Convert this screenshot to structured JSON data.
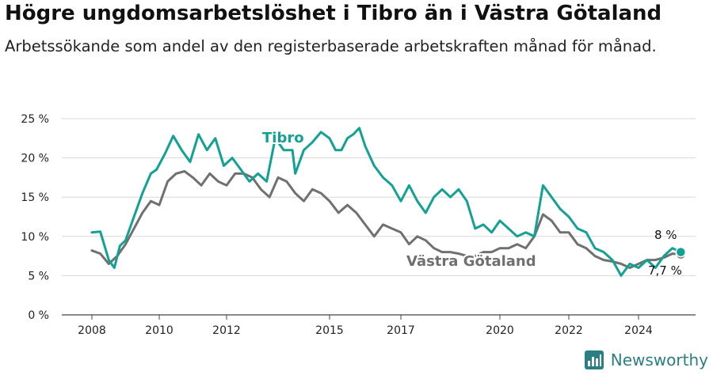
{
  "title": "Högre ungdomsarbetslöshet i Tibro än i Västra Götaland",
  "subtitle": "Arbetssökande som andel av den registerbaserade arbetskraften månad för månad.",
  "brand": "Newsworthy",
  "colors": {
    "tibro": "#12a193",
    "vg": "#707070",
    "grid": "#d8d8d8",
    "brand": "#2a7f83"
  },
  "chart_data": {
    "type": "line",
    "x_ticks": [
      "2008",
      "2010",
      "2012",
      "2015",
      "2017",
      "2020",
      "2022",
      "2024"
    ],
    "y_ticks": [
      "0 %",
      "5 %",
      "10 %",
      "15 %",
      "20 %",
      "25 %"
    ],
    "ylim": [
      0,
      25
    ],
    "xlim": [
      "2008-01",
      "2025-04"
    ],
    "grid": true,
    "series": [
      {
        "name": "Tibro",
        "color": "#12a193",
        "last_label": "8 %",
        "points": [
          [
            "2008-01",
            10.5
          ],
          [
            "2008-04",
            10.6
          ],
          [
            "2008-07",
            7.0
          ],
          [
            "2008-09",
            6.0
          ],
          [
            "2008-11",
            8.8
          ],
          [
            "2009-01",
            9.5
          ],
          [
            "2009-04",
            12.5
          ],
          [
            "2009-07",
            15.5
          ],
          [
            "2009-10",
            18.0
          ],
          [
            "2009-12",
            18.5
          ],
          [
            "2010-03",
            20.5
          ],
          [
            "2010-06",
            22.8
          ],
          [
            "2010-09",
            21.0
          ],
          [
            "2010-12",
            19.5
          ],
          [
            "2011-03",
            23.0
          ],
          [
            "2011-06",
            21.0
          ],
          [
            "2011-09",
            22.5
          ],
          [
            "2011-12",
            19.0
          ],
          [
            "2012-03",
            20.0
          ],
          [
            "2012-06",
            18.5
          ],
          [
            "2012-09",
            17.0
          ],
          [
            "2012-12",
            18.0
          ],
          [
            "2013-03",
            17.0
          ],
          [
            "2013-06",
            22.5
          ],
          [
            "2013-09",
            21.0
          ],
          [
            "2013-12",
            21.0
          ],
          [
            "2014-01",
            18.0
          ],
          [
            "2014-04",
            21.0
          ],
          [
            "2014-07",
            22.0
          ],
          [
            "2014-10",
            23.3
          ],
          [
            "2015-01",
            22.5
          ],
          [
            "2015-03",
            21.0
          ],
          [
            "2015-05",
            21.0
          ],
          [
            "2015-07",
            22.5
          ],
          [
            "2015-09",
            23.0
          ],
          [
            "2015-11",
            23.8
          ],
          [
            "2016-01",
            21.5
          ],
          [
            "2016-04",
            19.0
          ],
          [
            "2016-07",
            17.5
          ],
          [
            "2016-10",
            16.5
          ],
          [
            "2017-01",
            14.5
          ],
          [
            "2017-04",
            16.5
          ],
          [
            "2017-07",
            14.5
          ],
          [
            "2017-10",
            13.0
          ],
          [
            "2018-01",
            15.0
          ],
          [
            "2018-04",
            16.0
          ],
          [
            "2018-07",
            15.0
          ],
          [
            "2018-10",
            16.0
          ],
          [
            "2019-01",
            14.5
          ],
          [
            "2019-04",
            11.0
          ],
          [
            "2019-07",
            11.5
          ],
          [
            "2019-10",
            10.5
          ],
          [
            "2020-01",
            12.0
          ],
          [
            "2020-04",
            11.0
          ],
          [
            "2020-07",
            10.0
          ],
          [
            "2020-10",
            10.5
          ],
          [
            "2021-01",
            10.0
          ],
          [
            "2021-04",
            16.5
          ],
          [
            "2021-07",
            15.0
          ],
          [
            "2021-10",
            13.5
          ],
          [
            "2022-01",
            12.5
          ],
          [
            "2022-04",
            11.0
          ],
          [
            "2022-07",
            10.5
          ],
          [
            "2022-10",
            8.5
          ],
          [
            "2023-01",
            8.0
          ],
          [
            "2023-04",
            7.0
          ],
          [
            "2023-07",
            5.0
          ],
          [
            "2023-10",
            6.5
          ],
          [
            "2024-01",
            6.0
          ],
          [
            "2024-04",
            7.0
          ],
          [
            "2024-07",
            6.0
          ],
          [
            "2024-10",
            7.5
          ],
          [
            "2025-01",
            8.5
          ],
          [
            "2025-04",
            8.0
          ]
        ]
      },
      {
        "name": "Västra Götaland",
        "color": "#707070",
        "last_label": "7,7 %",
        "points": [
          [
            "2008-01",
            8.2
          ],
          [
            "2008-04",
            7.8
          ],
          [
            "2008-07",
            6.5
          ],
          [
            "2008-10",
            7.5
          ],
          [
            "2009-01",
            9.0
          ],
          [
            "2009-04",
            11.0
          ],
          [
            "2009-07",
            13.0
          ],
          [
            "2009-10",
            14.5
          ],
          [
            "2010-01",
            14.0
          ],
          [
            "2010-04",
            17.0
          ],
          [
            "2010-07",
            18.0
          ],
          [
            "2010-10",
            18.3
          ],
          [
            "2011-01",
            17.5
          ],
          [
            "2011-04",
            16.5
          ],
          [
            "2011-07",
            18.0
          ],
          [
            "2011-10",
            17.0
          ],
          [
            "2012-01",
            16.5
          ],
          [
            "2012-04",
            18.0
          ],
          [
            "2012-07",
            18.0
          ],
          [
            "2012-10",
            17.5
          ],
          [
            "2013-01",
            16.0
          ],
          [
            "2013-04",
            15.0
          ],
          [
            "2013-07",
            17.5
          ],
          [
            "2013-10",
            17.0
          ],
          [
            "2014-01",
            15.5
          ],
          [
            "2014-04",
            14.5
          ],
          [
            "2014-07",
            16.0
          ],
          [
            "2014-10",
            15.5
          ],
          [
            "2015-01",
            14.5
          ],
          [
            "2015-04",
            13.0
          ],
          [
            "2015-07",
            14.0
          ],
          [
            "2015-10",
            13.0
          ],
          [
            "2016-01",
            11.5
          ],
          [
            "2016-04",
            10.0
          ],
          [
            "2016-07",
            11.5
          ],
          [
            "2016-10",
            11.0
          ],
          [
            "2017-01",
            10.5
          ],
          [
            "2017-04",
            9.0
          ],
          [
            "2017-07",
            10.0
          ],
          [
            "2017-10",
            9.5
          ],
          [
            "2018-01",
            8.5
          ],
          [
            "2018-04",
            8.0
          ],
          [
            "2018-07",
            8.0
          ],
          [
            "2018-10",
            7.8
          ],
          [
            "2019-01",
            7.5
          ],
          [
            "2019-04",
            7.5
          ],
          [
            "2019-07",
            8.0
          ],
          [
            "2019-10",
            8.0
          ],
          [
            "2020-01",
            8.5
          ],
          [
            "2020-04",
            8.5
          ],
          [
            "2020-07",
            9.0
          ],
          [
            "2020-10",
            8.5
          ],
          [
            "2021-01",
            10.0
          ],
          [
            "2021-04",
            12.8
          ],
          [
            "2021-07",
            12.0
          ],
          [
            "2021-10",
            10.5
          ],
          [
            "2022-01",
            10.5
          ],
          [
            "2022-04",
            9.0
          ],
          [
            "2022-07",
            8.5
          ],
          [
            "2022-10",
            7.5
          ],
          [
            "2023-01",
            7.0
          ],
          [
            "2023-04",
            6.8
          ],
          [
            "2023-07",
            6.5
          ],
          [
            "2023-10",
            6.0
          ],
          [
            "2024-01",
            6.5
          ],
          [
            "2024-04",
            7.0
          ],
          [
            "2024-07",
            7.0
          ],
          [
            "2024-10",
            7.3
          ],
          [
            "2025-01",
            7.8
          ],
          [
            "2025-04",
            7.7
          ]
        ]
      }
    ]
  }
}
